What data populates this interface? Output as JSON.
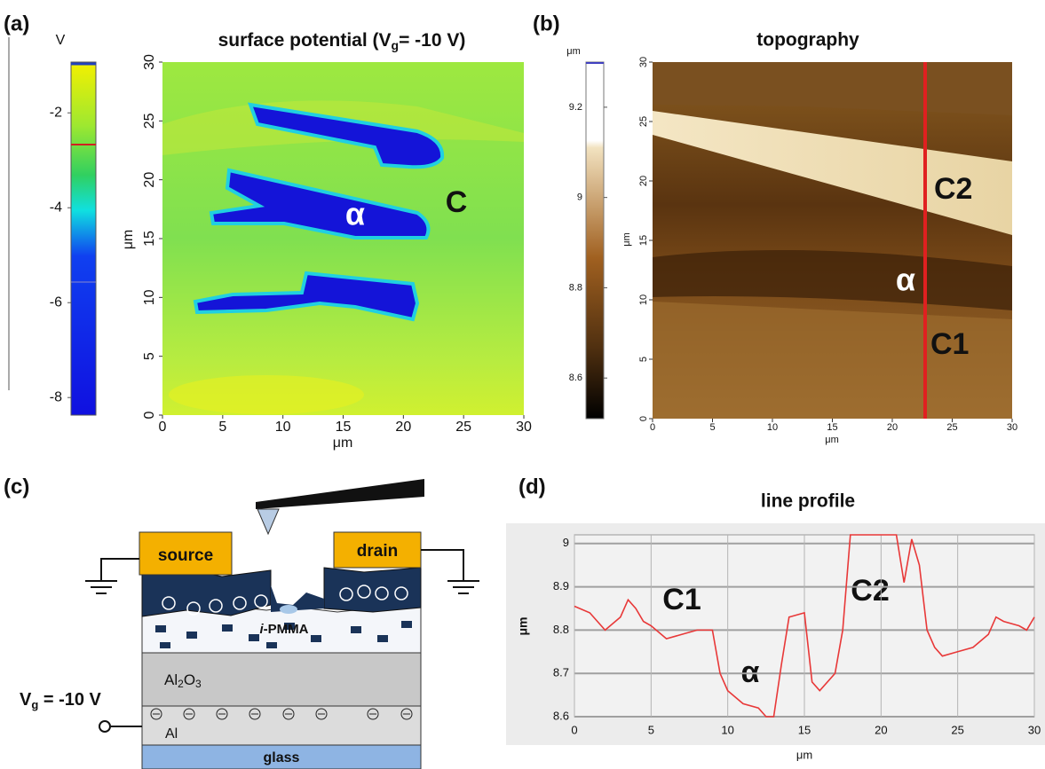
{
  "panel_a": {
    "label": "(a)",
    "title": [
      "surface potential (V",
      "g",
      "= -10 V)"
    ],
    "colorbar": {
      "unit": "V",
      "lim": [
        -0.93,
        -8.37
      ],
      "ticks": [
        -2,
        -4,
        -6,
        -8
      ]
    },
    "xlim": [
      0,
      30
    ],
    "ylim": [
      0,
      30
    ],
    "xticks": [
      0,
      5,
      10,
      15,
      20,
      25,
      30
    ],
    "yticks": [
      0,
      5,
      10,
      15,
      20,
      25,
      30
    ],
    "xlabel": "μm",
    "ylabel": "μm",
    "annotations": [
      "α",
      "C"
    ]
  },
  "panel_b": {
    "label": "(b)",
    "title": "topography",
    "colorbar": {
      "unit": "μm",
      "lim": [
        9.3,
        8.51
      ],
      "ticks": [
        9.2,
        9,
        8.8,
        8.6
      ]
    },
    "xlim": [
      0,
      30
    ],
    "ylim": [
      0,
      30
    ],
    "xticks": [
      0,
      5,
      10,
      15,
      20,
      25,
      30
    ],
    "yticks": [
      0,
      5,
      10,
      15,
      20,
      25,
      30
    ],
    "xlabel": "μm",
    "ylabel": "μm",
    "annotations": [
      "C2",
      "α",
      "C1"
    ]
  },
  "panel_c": {
    "label": "(c)",
    "labels": {
      "source": "source",
      "drain": "drain",
      "pmma": [
        "i",
        "-PMMA"
      ],
      "oxide": [
        "Al",
        "2",
        "O",
        "3"
      ],
      "gate_voltage": [
        "V",
        "g",
        " = -10 V"
      ],
      "gate": "Al",
      "substrate": "glass"
    }
  },
  "panel_d": {
    "label": "(d)",
    "title": "line profile",
    "type": "line",
    "color": "#e83838",
    "x": [
      0,
      1,
      2,
      3,
      3.5,
      4,
      4.5,
      5,
      6,
      7,
      8,
      9,
      9.5,
      10,
      11,
      12,
      12.5,
      13,
      13.5,
      14,
      15,
      15.5,
      16,
      17,
      17.5,
      18,
      19,
      20,
      21,
      21.5,
      22,
      22.5,
      23,
      23.5,
      24,
      25,
      26,
      27,
      27.5,
      28,
      29,
      29.5,
      30
    ],
    "values": [
      8.855,
      8.84,
      8.8,
      8.83,
      8.87,
      8.85,
      8.82,
      8.81,
      8.78,
      8.79,
      8.8,
      8.8,
      8.7,
      8.66,
      8.63,
      8.62,
      8.6,
      8.6,
      8.72,
      8.83,
      8.84,
      8.68,
      8.66,
      8.7,
      8.8,
      9.02,
      9.02,
      9.02,
      9.02,
      8.91,
      9.01,
      8.95,
      8.8,
      8.76,
      8.74,
      8.75,
      8.76,
      8.79,
      8.83,
      8.82,
      8.81,
      8.8,
      8.83
    ],
    "xlim": [
      0,
      30
    ],
    "ylim": [
      8.6,
      9.02
    ],
    "xticks": [
      0,
      5,
      10,
      15,
      20,
      25,
      30
    ],
    "yticks": [
      8.6,
      8.7,
      8.8,
      8.9,
      9
    ],
    "grid": true,
    "xlabel": "μm",
    "ylabel": "μm",
    "annotations": [
      "C1",
      "α",
      "C2"
    ]
  }
}
